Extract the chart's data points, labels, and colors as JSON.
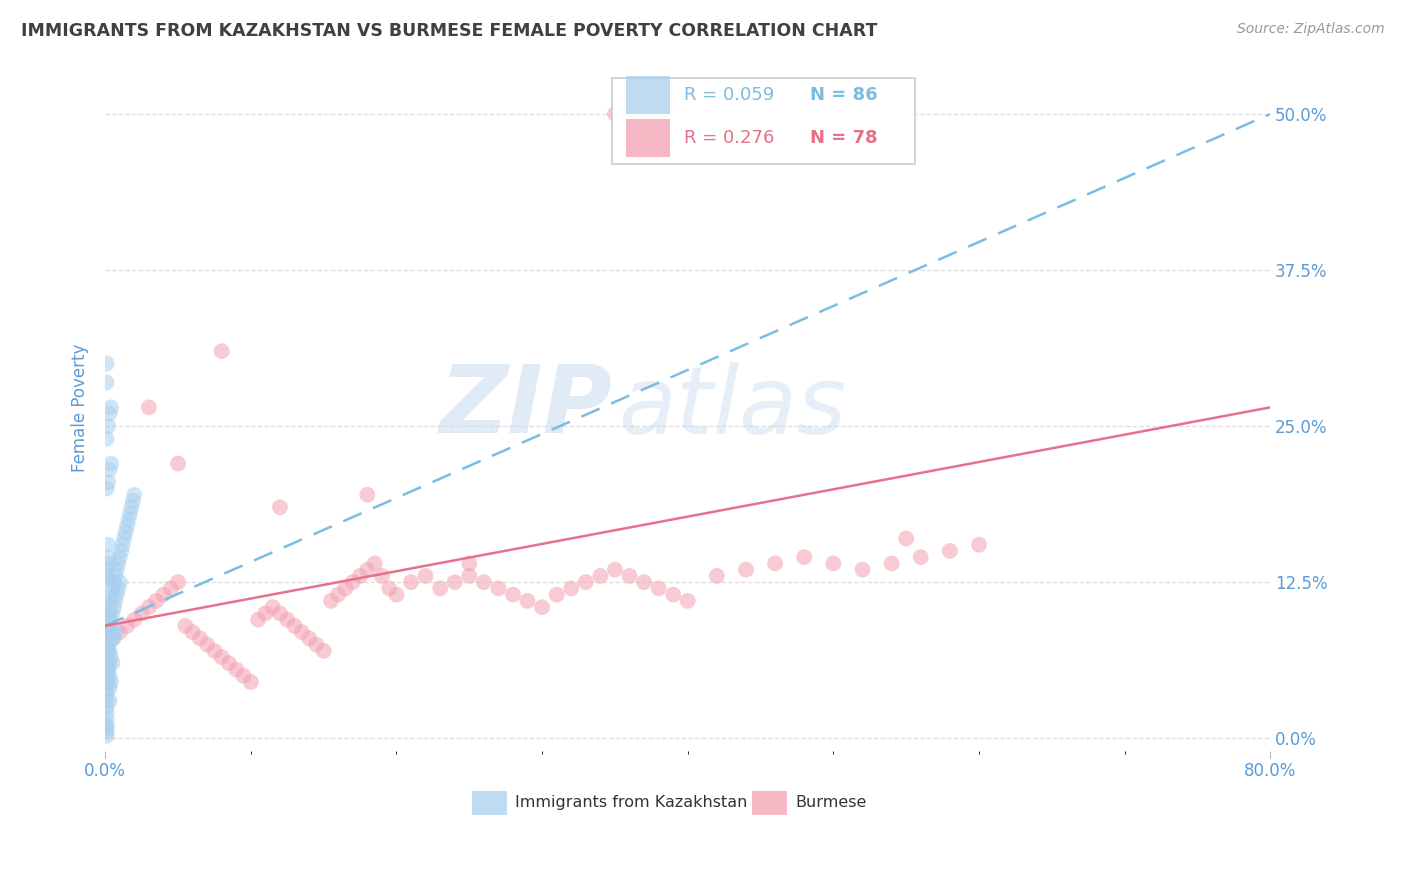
{
  "title": "IMMIGRANTS FROM KAZAKHSTAN VS BURMESE FEMALE POVERTY CORRELATION CHART",
  "source": "Source: ZipAtlas.com",
  "ylabel": "Female Poverty",
  "ytick_labels": [
    "0.0%",
    "12.5%",
    "25.0%",
    "37.5%",
    "50.0%"
  ],
  "ytick_values": [
    0.0,
    0.125,
    0.25,
    0.375,
    0.5
  ],
  "xlim": [
    0.0,
    0.8
  ],
  "ylim": [
    -0.01,
    0.54
  ],
  "legend_r1": "R = 0.059",
  "legend_n1": "N = 86",
  "legend_r2": "R = 0.276",
  "legend_n2": "N = 78",
  "color_blue": "#A8CFEE",
  "color_pink": "#F4A0B0",
  "color_trendline_blue": "#7BBDE0",
  "color_trendline_pink": "#E8708A",
  "color_axis_label": "#5B9BD5",
  "color_title": "#404040",
  "color_grid": "#DDDDDD",
  "watermark_zip": "ZIP",
  "watermark_atlas": "atlas",
  "kaz_x": [
    0.001,
    0.001,
    0.001,
    0.001,
    0.001,
    0.001,
    0.001,
    0.001,
    0.001,
    0.001,
    0.001,
    0.001,
    0.001,
    0.001,
    0.001,
    0.001,
    0.001,
    0.001,
    0.001,
    0.001,
    0.002,
    0.002,
    0.002,
    0.002,
    0.002,
    0.002,
    0.002,
    0.002,
    0.002,
    0.002,
    0.003,
    0.003,
    0.003,
    0.003,
    0.003,
    0.003,
    0.003,
    0.003,
    0.003,
    0.004,
    0.004,
    0.004,
    0.004,
    0.004,
    0.005,
    0.005,
    0.005,
    0.005,
    0.006,
    0.006,
    0.006,
    0.007,
    0.007,
    0.007,
    0.008,
    0.008,
    0.009,
    0.009,
    0.01,
    0.01,
    0.011,
    0.012,
    0.013,
    0.014,
    0.015,
    0.016,
    0.017,
    0.018,
    0.019,
    0.02,
    0.001,
    0.001,
    0.001,
    0.001,
    0.002,
    0.002,
    0.003,
    0.003,
    0.004,
    0.004,
    0.002,
    0.002,
    0.003,
    0.001,
    0.001,
    0.002
  ],
  "kaz_y": [
    0.1,
    0.09,
    0.08,
    0.075,
    0.07,
    0.065,
    0.06,
    0.055,
    0.05,
    0.045,
    0.04,
    0.035,
    0.03,
    0.025,
    0.02,
    0.015,
    0.01,
    0.008,
    0.005,
    0.002,
    0.105,
    0.095,
    0.085,
    0.075,
    0.07,
    0.065,
    0.06,
    0.055,
    0.05,
    0.045,
    0.11,
    0.1,
    0.09,
    0.08,
    0.07,
    0.06,
    0.05,
    0.04,
    0.03,
    0.115,
    0.095,
    0.085,
    0.065,
    0.045,
    0.12,
    0.1,
    0.085,
    0.06,
    0.125,
    0.105,
    0.08,
    0.13,
    0.11,
    0.085,
    0.135,
    0.115,
    0.14,
    0.12,
    0.145,
    0.125,
    0.15,
    0.155,
    0.16,
    0.165,
    0.17,
    0.175,
    0.18,
    0.185,
    0.19,
    0.195,
    0.2,
    0.24,
    0.285,
    0.3,
    0.205,
    0.25,
    0.215,
    0.26,
    0.22,
    0.265,
    0.155,
    0.145,
    0.14,
    0.135,
    0.13,
    0.128
  ],
  "bur_x": [
    0.005,
    0.01,
    0.015,
    0.02,
    0.025,
    0.03,
    0.035,
    0.04,
    0.045,
    0.05,
    0.055,
    0.06,
    0.065,
    0.07,
    0.075,
    0.08,
    0.085,
    0.09,
    0.095,
    0.1,
    0.105,
    0.11,
    0.115,
    0.12,
    0.125,
    0.13,
    0.135,
    0.14,
    0.145,
    0.15,
    0.155,
    0.16,
    0.165,
    0.17,
    0.175,
    0.18,
    0.185,
    0.19,
    0.195,
    0.2,
    0.21,
    0.22,
    0.23,
    0.24,
    0.25,
    0.26,
    0.27,
    0.28,
    0.29,
    0.3,
    0.31,
    0.32,
    0.33,
    0.34,
    0.35,
    0.36,
    0.37,
    0.38,
    0.39,
    0.4,
    0.42,
    0.44,
    0.46,
    0.48,
    0.5,
    0.52,
    0.54,
    0.56,
    0.58,
    0.6,
    0.03,
    0.05,
    0.08,
    0.12,
    0.18,
    0.25,
    0.35,
    0.55
  ],
  "bur_y": [
    0.08,
    0.085,
    0.09,
    0.095,
    0.1,
    0.105,
    0.11,
    0.115,
    0.12,
    0.125,
    0.09,
    0.085,
    0.08,
    0.075,
    0.07,
    0.065,
    0.06,
    0.055,
    0.05,
    0.045,
    0.095,
    0.1,
    0.105,
    0.1,
    0.095,
    0.09,
    0.085,
    0.08,
    0.075,
    0.07,
    0.11,
    0.115,
    0.12,
    0.125,
    0.13,
    0.135,
    0.14,
    0.13,
    0.12,
    0.115,
    0.125,
    0.13,
    0.12,
    0.125,
    0.13,
    0.125,
    0.12,
    0.115,
    0.11,
    0.105,
    0.115,
    0.12,
    0.125,
    0.13,
    0.135,
    0.13,
    0.125,
    0.12,
    0.115,
    0.11,
    0.13,
    0.135,
    0.14,
    0.145,
    0.14,
    0.135,
    0.14,
    0.145,
    0.15,
    0.155,
    0.265,
    0.22,
    0.31,
    0.185,
    0.195,
    0.14,
    0.5,
    0.16
  ]
}
